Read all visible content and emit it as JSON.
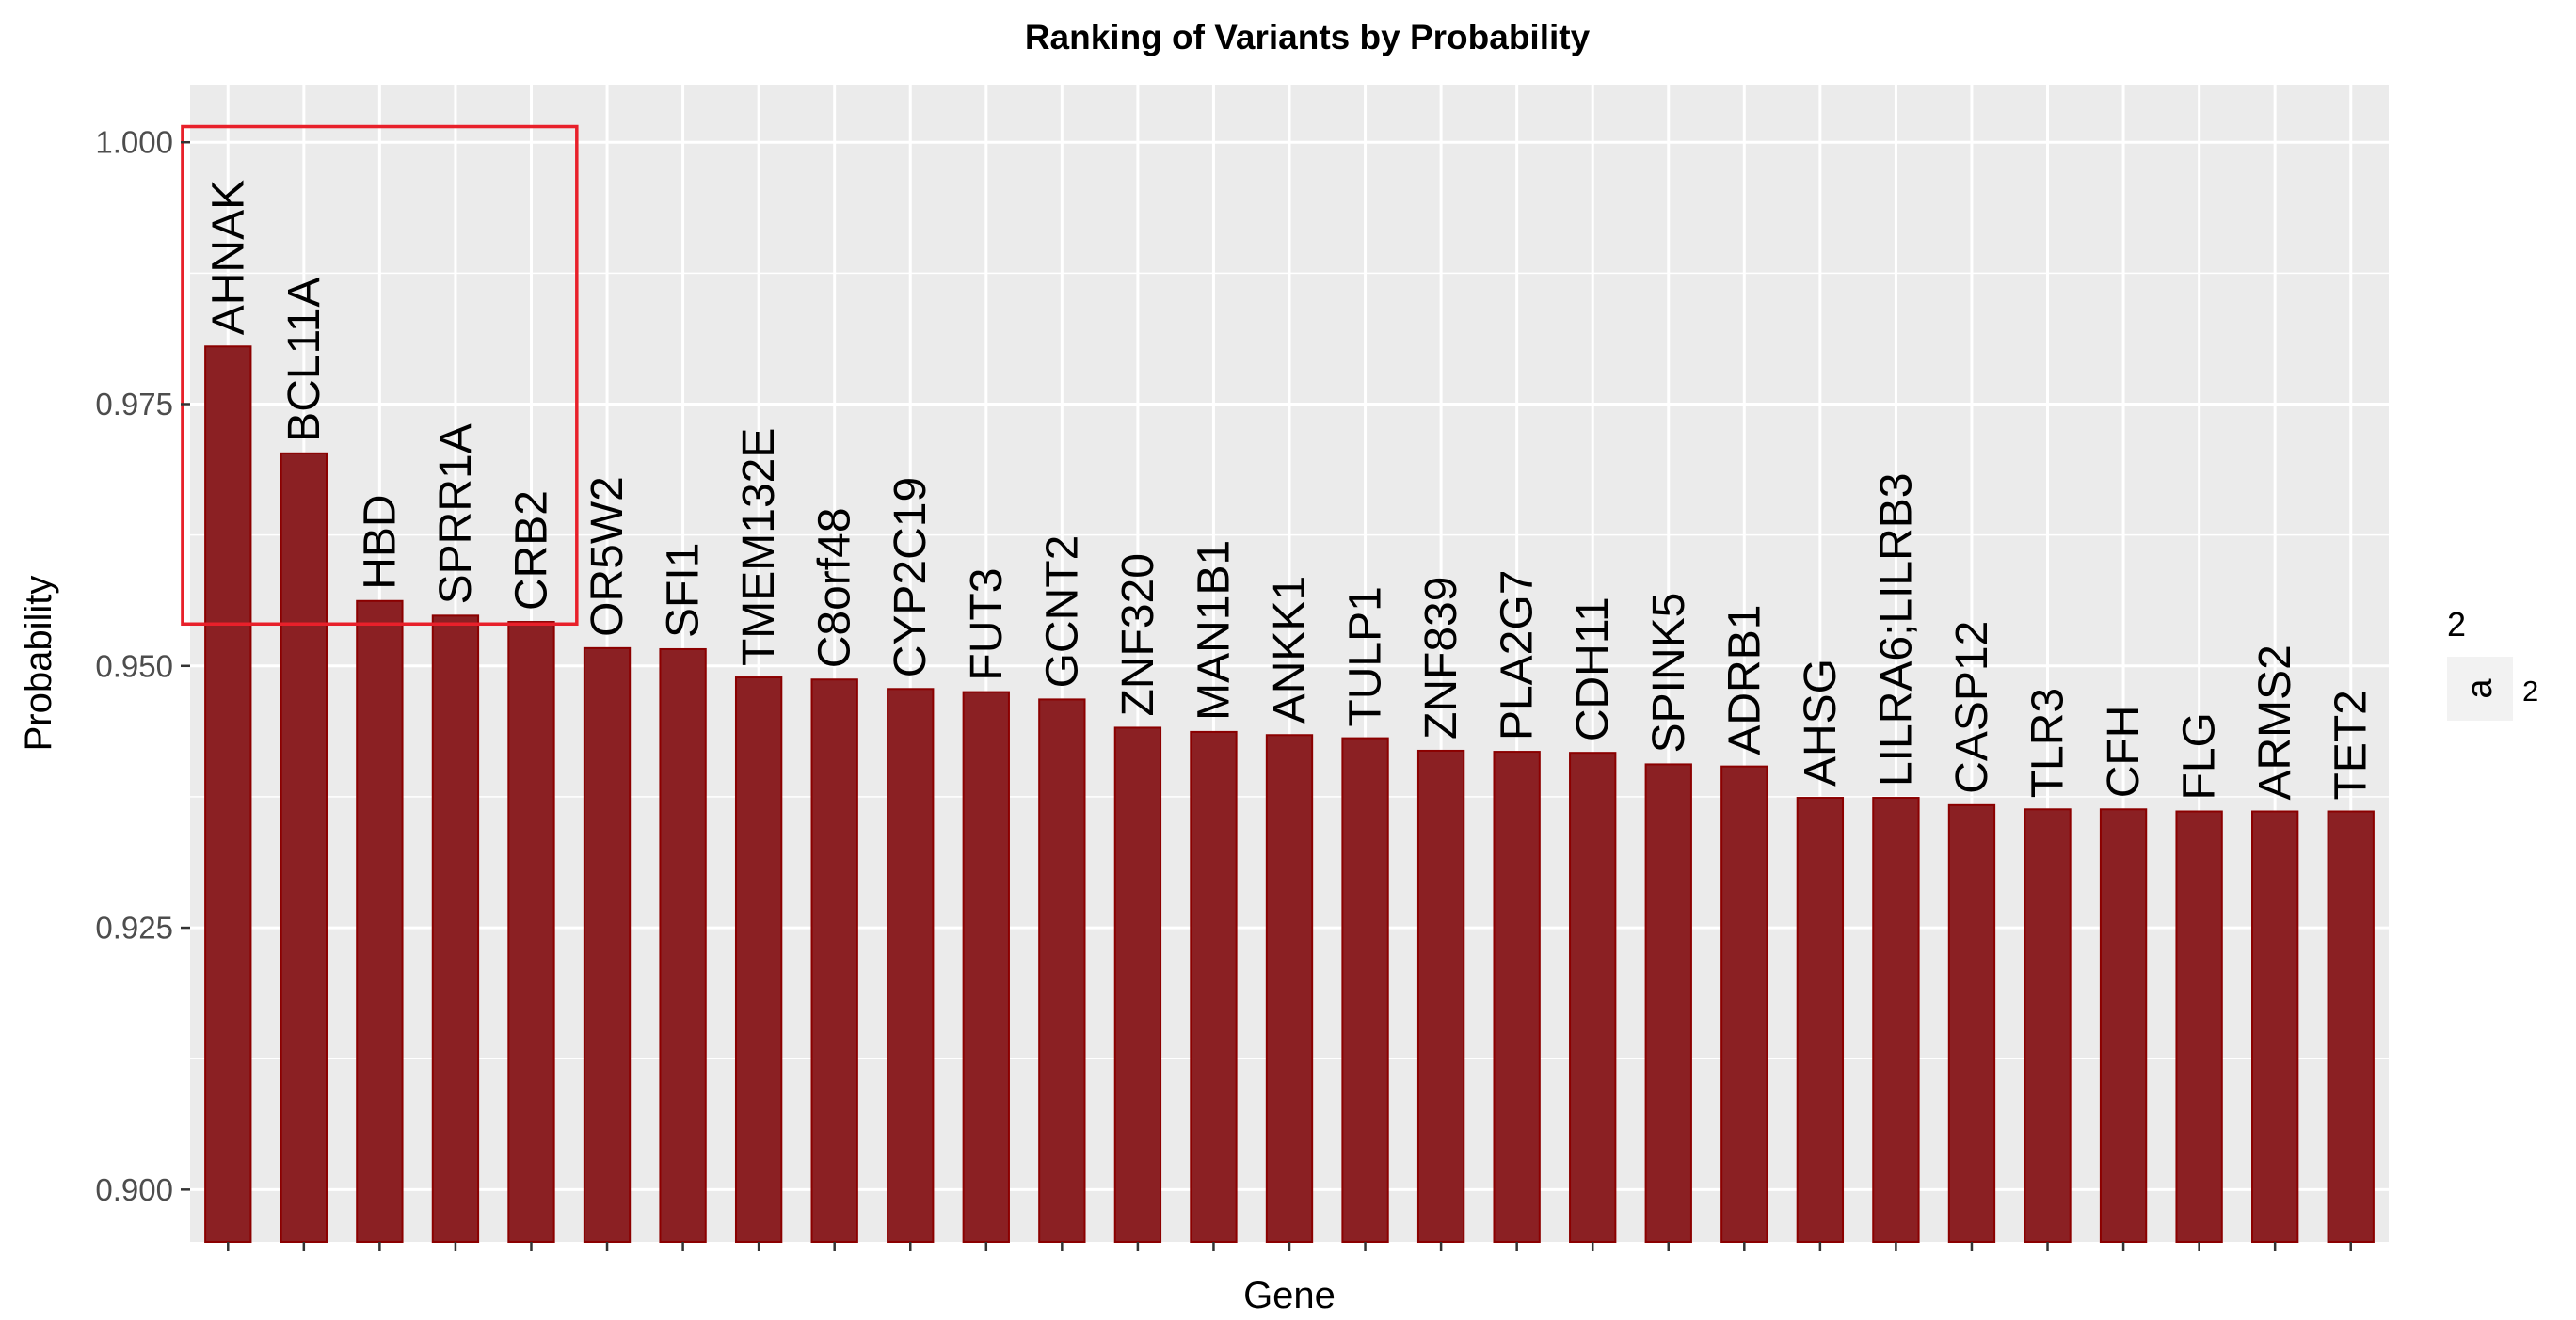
{
  "chart_data": {
    "type": "bar",
    "title": "Ranking of Variants by Probability",
    "xlabel": "Gene",
    "ylabel": "Probability",
    "ylim": [
      0.895,
      1.0055
    ],
    "yticks": [
      "0.900",
      "0.925",
      "0.950",
      "0.975",
      "1.000"
    ],
    "ytick_values": [
      0.9,
      0.925,
      0.95,
      0.975,
      1.0
    ],
    "categories": [
      "AHNAK",
      "BCL11A",
      "HBD",
      "SPRR1A",
      "CRB2",
      "OR5W2",
      "SFI1",
      "TMEM132E",
      "C8orf48",
      "CYP2C19",
      "FUT3",
      "GCNT2",
      "ZNF320",
      "MAN1B1",
      "ANKK1",
      "TULP1",
      "ZNF839",
      "PLA2G7",
      "CDH11",
      "SPINK5",
      "ADRB1",
      "AHSG",
      "LILRA6;LILRB3",
      "CASP12",
      "TLR3",
      "CFH",
      "FLG",
      "ARMS2",
      "TET2"
    ],
    "values": [
      0.9805,
      0.9703,
      0.9562,
      0.9548,
      0.9542,
      0.9517,
      0.9516,
      0.9489,
      0.9487,
      0.9478,
      0.9475,
      0.9468,
      0.9441,
      0.9437,
      0.9434,
      0.9431,
      0.9419,
      0.9418,
      0.9417,
      0.9406,
      0.9404,
      0.9374,
      0.9374,
      0.9367,
      0.9363,
      0.9363,
      0.9361,
      0.9361,
      0.9361
    ],
    "bar_color": "#8b2023",
    "bar_edge_color": "#8b0000",
    "panel_background": "#ebebeb",
    "grid": true,
    "highlight": {
      "from_category": "AHNAK",
      "to_category": "CRB2",
      "y_range": [
        0.954,
        1.0015
      ],
      "color": "#e8202a"
    },
    "legend": {
      "title": "2",
      "key_text": "a",
      "label": "2",
      "placement": "right"
    }
  }
}
